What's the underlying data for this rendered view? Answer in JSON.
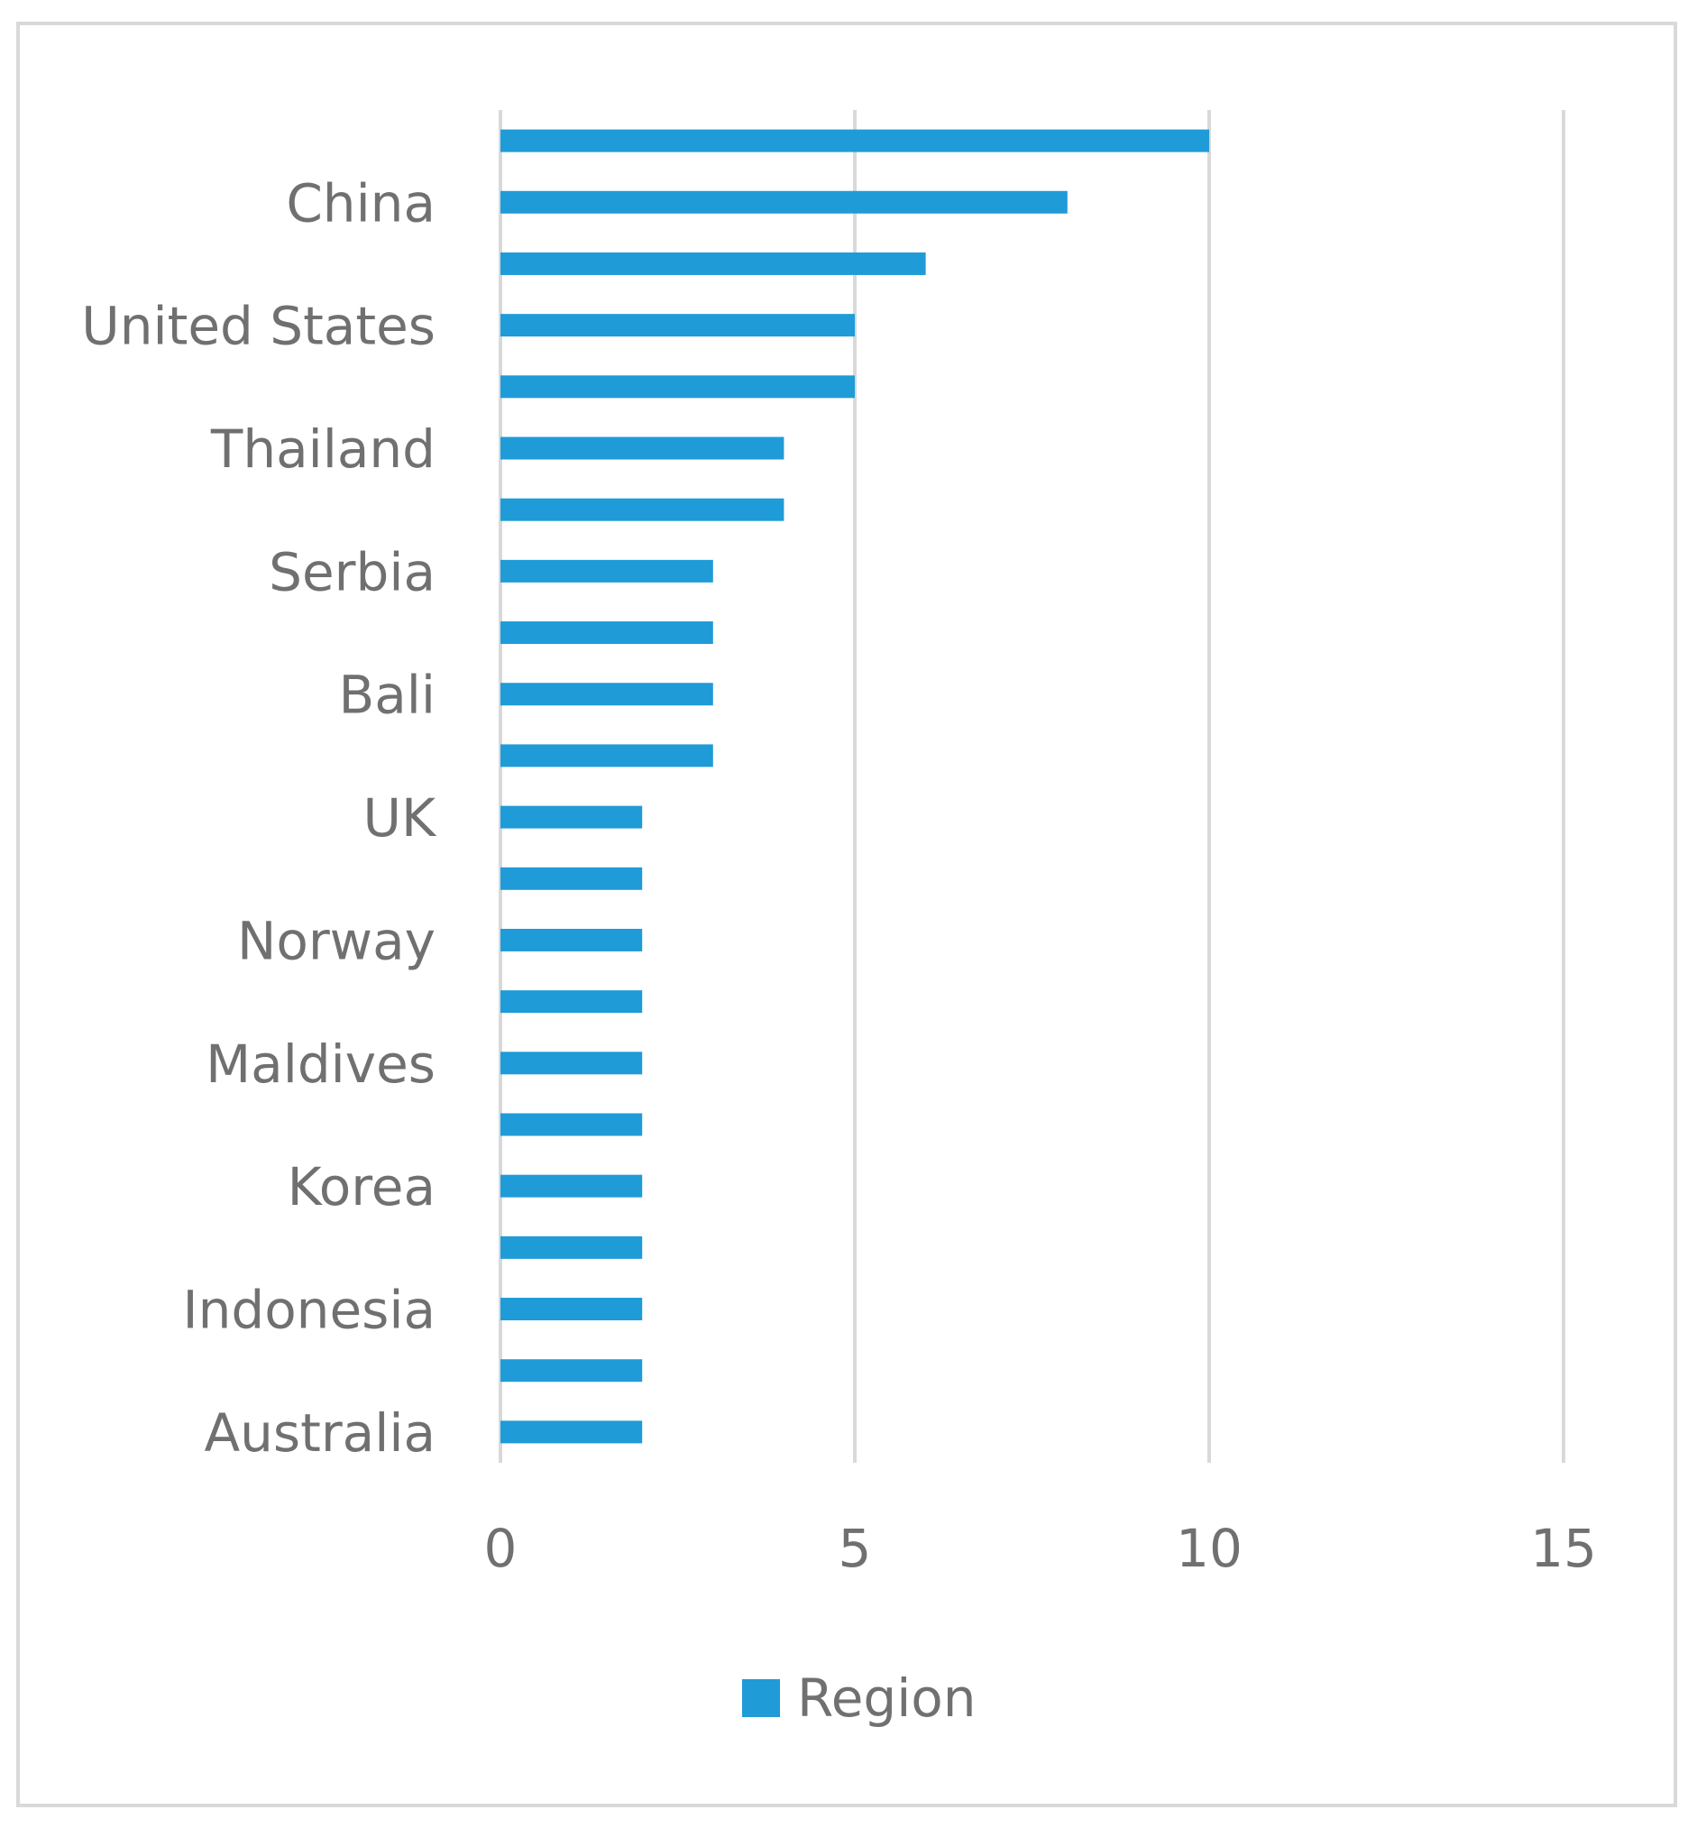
{
  "chart_data": {
    "type": "bar",
    "orientation": "horizontal",
    "title": "",
    "xlabel": "",
    "ylabel": "",
    "xlim": [
      0,
      15
    ],
    "xticks": [
      0,
      5,
      10,
      15
    ],
    "grid": true,
    "legend_position": "bottom",
    "bar_color": "#1f9bd7",
    "categories": [
      "",
      "China",
      "",
      "United States",
      "",
      "Thailand",
      "",
      "Serbia",
      "",
      "Bali",
      "",
      "UK",
      "",
      "Norway",
      "",
      "Maldives",
      "",
      "Korea",
      "",
      "Indonesia",
      "",
      "Australia"
    ],
    "series": [
      {
        "name": "Region",
        "values": [
          10,
          8,
          6,
          5,
          5,
          4,
          4,
          3,
          3,
          3,
          3,
          2,
          2,
          2,
          2,
          2,
          2,
          2,
          2,
          2,
          2,
          2
        ]
      }
    ]
  }
}
